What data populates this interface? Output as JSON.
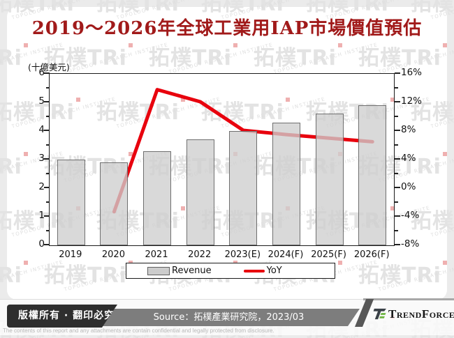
{
  "title": "2019～2026年全球工業用IAP市場價值預估",
  "watermark": {
    "big": "拓樸TRi",
    "subtext": "TOPOLOGY RESEARCH INSTITUTE"
  },
  "chart_data": {
    "type": "bar",
    "title": "2019～2026年全球工業用IAP市場價值預估",
    "unit_label": "(十億美元)",
    "categories": [
      "2019",
      "2020",
      "2021",
      "2022",
      "2023(E)",
      "2024(F)",
      "2025(F)",
      "2026(F)"
    ],
    "series": [
      {
        "name": "Revenue",
        "type": "bar",
        "axis": "left",
        "values": [
          3.0,
          2.9,
          3.3,
          3.7,
          4.0,
          4.3,
          4.6,
          4.9
        ]
      },
      {
        "name": "YoY",
        "type": "line",
        "axis": "right",
        "values": [
          null,
          -3.3,
          13.8,
          12.1,
          8.1,
          7.5,
          7.0,
          6.5
        ]
      }
    ],
    "left_axis": {
      "min": 0,
      "max": 6,
      "tick_step": 1,
      "minor_step": 0.5
    },
    "right_axis": {
      "min": -8,
      "max": 16,
      "tick_step": 4,
      "minor_step": 2,
      "suffix": "%"
    },
    "legend": {
      "position": "bottom",
      "items": [
        "Revenue",
        "YoY"
      ]
    },
    "grid": false,
    "colors": {
      "bar": "#cccccc",
      "line": "#e8000d"
    }
  },
  "footer": {
    "copyright": "版權所有 · 翻印必究",
    "source": "Source：拓樸產業研究院，2023/03",
    "brand": "TrendForce",
    "disclaimer": "The contents of this report and any attachments are contain confidential and legally protected from disclosure."
  }
}
